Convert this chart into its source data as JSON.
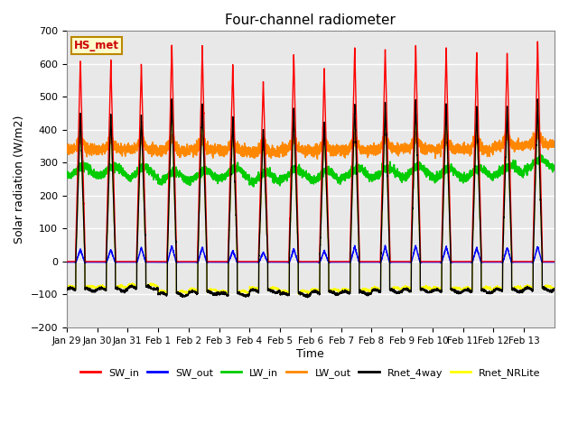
{
  "title": "Four-channel radiometer",
  "xlabel": "Time",
  "ylabel": "Solar radiation (W/m2)",
  "ylim": [
    -200,
    700
  ],
  "yticks": [
    -200,
    -100,
    0,
    100,
    200,
    300,
    400,
    500,
    600,
    700
  ],
  "x_labels": [
    "Jan 29",
    "Jan 30",
    "Jan 31",
    "Feb 1",
    "Feb 2",
    "Feb 3",
    "Feb 4",
    "Feb 5",
    "Feb 6",
    "Feb 7",
    "Feb 8",
    "Feb 9",
    "Feb 10",
    "Feb 11",
    "Feb 12",
    "Feb 13"
  ],
  "num_days": 16,
  "station_label": "HS_met",
  "colors": {
    "SW_in": "#ff0000",
    "SW_out": "#0000ff",
    "LW_in": "#00cc00",
    "LW_out": "#ff8800",
    "Rnet_4way": "#000000",
    "Rnet_NRLite": "#ffff00"
  },
  "legend_labels": [
    "SW_in",
    "SW_out",
    "LW_in",
    "LW_out",
    "Rnet_4way",
    "Rnet_NRLite"
  ],
  "plot_bg_color": "#e8e8e8",
  "SW_in_peaks": [
    615,
    610,
    600,
    665,
    648,
    598,
    548,
    630,
    580,
    648,
    648,
    658,
    652,
    635,
    638,
    668
  ],
  "pts_per_day": 288
}
